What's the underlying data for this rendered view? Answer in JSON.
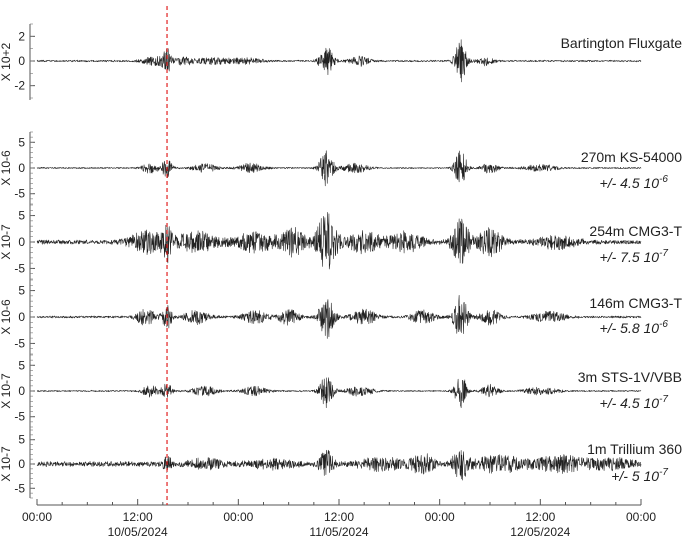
{
  "chart_data": {
    "type": "line",
    "x_range_hours": [
      0,
      72
    ],
    "x_ticks": [
      {
        "hour": 0,
        "label": "00:00"
      },
      {
        "hour": 12,
        "label": "12:00"
      },
      {
        "hour": 24,
        "label": "00:00"
      },
      {
        "hour": 36,
        "label": "12:00"
      },
      {
        "hour": 48,
        "label": "00:00"
      },
      {
        "hour": 60,
        "label": "12:00"
      },
      {
        "hour": 72,
        "label": "00:00"
      }
    ],
    "dates": [
      {
        "hour": 12,
        "label": "10/05/2024"
      },
      {
        "hour": 36,
        "label": "11/05/2024"
      },
      {
        "hour": 60,
        "label": "12/05/2024"
      }
    ],
    "event_marker_hour": 15.5,
    "event_marker_color": "#e02020",
    "trace_color": "#222222",
    "panels": [
      {
        "title": "Bartington Fluxgate",
        "amplitude": "",
        "scale_label": "X 10+2",
        "ylim": [
          -3,
          3
        ],
        "yticks": [
          "2",
          "0",
          "-2"
        ],
        "ytick_values": [
          2,
          0,
          -2
        ],
        "noise_level": 0.06,
        "bursts": [
          {
            "hour": 15.5,
            "amp": 0.9,
            "width": 0.5
          },
          {
            "hour": 14.0,
            "amp": 0.35,
            "width": 1.5
          },
          {
            "hour": 17.5,
            "amp": 0.3,
            "width": 1.2
          },
          {
            "hour": 21.0,
            "amp": 0.25,
            "width": 2.0
          },
          {
            "hour": 25.0,
            "amp": 0.25,
            "width": 2.0
          },
          {
            "hour": 34.5,
            "amp": 1.3,
            "width": 0.8
          },
          {
            "hour": 38.5,
            "amp": 0.4,
            "width": 1.2
          },
          {
            "hour": 50.5,
            "amp": 1.7,
            "width": 0.7
          },
          {
            "hour": 53.5,
            "amp": 0.35,
            "width": 1.0
          }
        ]
      },
      {
        "title": "270m KS-54000",
        "amplitude": "+/- 4.5 10",
        "amplitude_exp": "-6",
        "scale_label": "X 10-6",
        "ylim": [
          -7,
          7
        ],
        "yticks": [
          "5",
          "0",
          "-5"
        ],
        "ytick_values": [
          5,
          0,
          -5
        ],
        "noise_level": 0.12,
        "bursts": [
          {
            "hour": 15.5,
            "amp": 1.8,
            "width": 0.6
          },
          {
            "hour": 13.5,
            "amp": 1.0,
            "width": 1.0
          },
          {
            "hour": 20.0,
            "amp": 0.8,
            "width": 1.5
          },
          {
            "hour": 25.5,
            "amp": 0.9,
            "width": 1.5
          },
          {
            "hour": 34.5,
            "amp": 3.5,
            "width": 0.8
          },
          {
            "hour": 38.0,
            "amp": 0.9,
            "width": 1.5
          },
          {
            "hour": 50.5,
            "amp": 3.8,
            "width": 0.7
          },
          {
            "hour": 54.0,
            "amp": 1.0,
            "width": 1.0
          },
          {
            "hour": 60.0,
            "amp": 0.6,
            "width": 2.0
          }
        ]
      },
      {
        "title": "254m CMG3-T",
        "amplitude": "+/- 7.5 10",
        "amplitude_exp": "-7",
        "scale_label": "X 10-7",
        "ylim": [
          -7,
          7
        ],
        "yticks": [
          "5",
          "0",
          "-5"
        ],
        "ytick_values": [
          5,
          0,
          -5
        ],
        "noise_level": 0.35,
        "bursts": [
          {
            "hour": 15.5,
            "amp": 3.0,
            "width": 0.6
          },
          {
            "hour": 13.0,
            "amp": 2.0,
            "width": 2.0
          },
          {
            "hour": 19.0,
            "amp": 1.8,
            "width": 2.5
          },
          {
            "hour": 26.0,
            "amp": 1.8,
            "width": 2.5
          },
          {
            "hour": 30.5,
            "amp": 2.5,
            "width": 1.5
          },
          {
            "hour": 34.5,
            "amp": 5.5,
            "width": 1.2
          },
          {
            "hour": 39.0,
            "amp": 2.0,
            "width": 2.0
          },
          {
            "hour": 44.0,
            "amp": 1.8,
            "width": 2.0
          },
          {
            "hour": 50.5,
            "amp": 4.5,
            "width": 1.0
          },
          {
            "hour": 54.0,
            "amp": 2.5,
            "width": 1.5
          },
          {
            "hour": 62.0,
            "amp": 1.2,
            "width": 2.5
          }
        ]
      },
      {
        "title": "146m CMG3-T",
        "amplitude": "+/- 5.8 10",
        "amplitude_exp": "-6",
        "scale_label": "X 10-6",
        "ylim": [
          -7,
          7
        ],
        "yticks": [
          "5",
          "0",
          "-5"
        ],
        "ytick_values": [
          5,
          0,
          -5
        ],
        "noise_level": 0.18,
        "bursts": [
          {
            "hour": 15.5,
            "amp": 2.2,
            "width": 0.6
          },
          {
            "hour": 13.0,
            "amp": 1.5,
            "width": 1.2
          },
          {
            "hour": 19.0,
            "amp": 1.3,
            "width": 1.5
          },
          {
            "hour": 26.0,
            "amp": 1.2,
            "width": 1.5
          },
          {
            "hour": 30.0,
            "amp": 1.5,
            "width": 1.2
          },
          {
            "hour": 34.5,
            "amp": 4.0,
            "width": 0.9
          },
          {
            "hour": 39.0,
            "amp": 1.4,
            "width": 1.5
          },
          {
            "hour": 46.0,
            "amp": 1.2,
            "width": 1.5
          },
          {
            "hour": 50.5,
            "amp": 4.2,
            "width": 0.8
          },
          {
            "hour": 54.0,
            "amp": 1.5,
            "width": 1.2
          },
          {
            "hour": 61.0,
            "amp": 1.0,
            "width": 2.0
          }
        ]
      },
      {
        "title": "3m STS-1V/VBB",
        "amplitude": "+/- 4.5 10",
        "amplitude_exp": "-7",
        "scale_label": "X 10-7",
        "ylim": [
          -7,
          7
        ],
        "yticks": [
          "5",
          "0",
          "-5"
        ],
        "ytick_values": [
          5,
          0,
          -5
        ],
        "noise_level": 0.12,
        "bursts": [
          {
            "hour": 15.5,
            "amp": 1.5,
            "width": 0.6
          },
          {
            "hour": 13.5,
            "amp": 1.1,
            "width": 1.0
          },
          {
            "hour": 20.0,
            "amp": 0.9,
            "width": 1.5
          },
          {
            "hour": 26.0,
            "amp": 0.9,
            "width": 1.5
          },
          {
            "hour": 34.5,
            "amp": 3.2,
            "width": 0.8
          },
          {
            "hour": 38.5,
            "amp": 1.0,
            "width": 1.5
          },
          {
            "hour": 50.5,
            "amp": 3.5,
            "width": 0.7
          },
          {
            "hour": 54.0,
            "amp": 1.2,
            "width": 1.0
          },
          {
            "hour": 60.0,
            "amp": 0.7,
            "width": 2.0
          }
        ]
      },
      {
        "title": "1m Trillium 360",
        "amplitude": "+/- 5 10",
        "amplitude_exp": "-7",
        "scale_label": "X 10-7",
        "ylim": [
          -7,
          7
        ],
        "yticks": [
          "5",
          "0",
          "-5"
        ],
        "ytick_values": [
          5,
          0,
          -5
        ],
        "noise_level": 0.45,
        "bursts": [
          {
            "hour": 15.5,
            "amp": 1.2,
            "width": 0.6
          },
          {
            "hour": 20.0,
            "amp": 0.9,
            "width": 2.0
          },
          {
            "hour": 28.0,
            "amp": 0.8,
            "width": 2.5
          },
          {
            "hour": 34.5,
            "amp": 2.8,
            "width": 0.8
          },
          {
            "hour": 41.0,
            "amp": 1.2,
            "width": 2.5
          },
          {
            "hour": 46.0,
            "amp": 1.8,
            "width": 1.5
          },
          {
            "hour": 50.5,
            "amp": 3.2,
            "width": 0.9
          },
          {
            "hour": 55.0,
            "amp": 1.8,
            "width": 2.5
          },
          {
            "hour": 62.0,
            "amp": 1.5,
            "width": 3.0
          },
          {
            "hour": 68.0,
            "amp": 1.0,
            "width": 3.0
          }
        ]
      }
    ]
  }
}
